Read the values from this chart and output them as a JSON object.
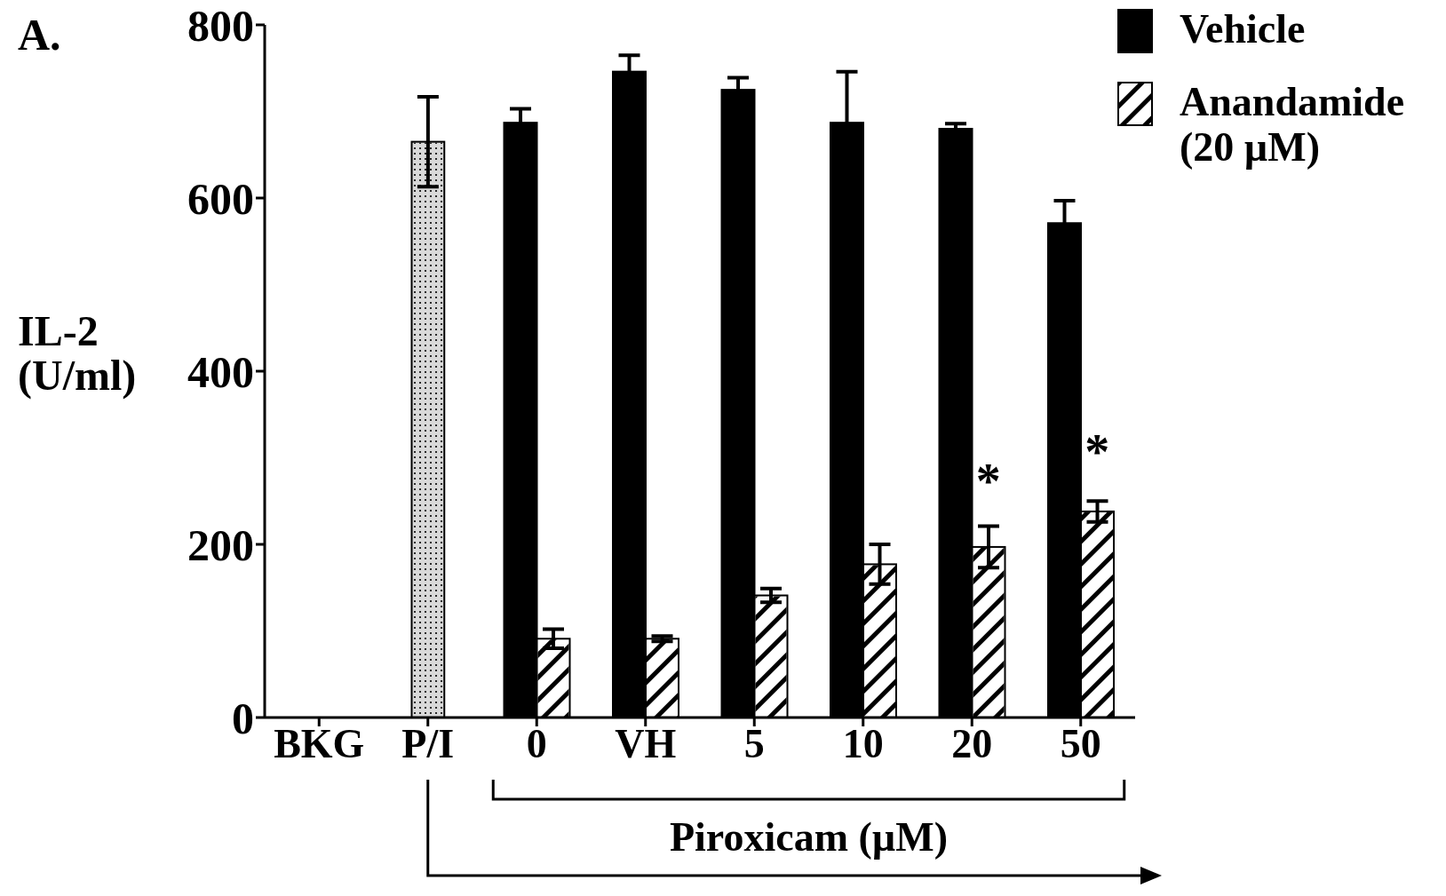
{
  "chart_data": {
    "type": "bar",
    "annotations": [
      "A.",
      {
        "text": "*",
        "x": "20",
        "y": 282
      },
      {
        "text": "*",
        "x": "50",
        "y": 316
      }
    ],
    "xlabel": "Piroxicam (µM)",
    "ylabel": "IL-2 (U/ml)",
    "categories": [
      "BKG",
      "P/I",
      "0",
      "VH",
      "5",
      "10",
      "20",
      "50"
    ],
    "series": [
      {
        "color": "#d9d9d9",
        "values": [
          null,
          665,
          null,
          null,
          null,
          null,
          null,
          null
        ],
        "errors": [
          null,
          52,
          null,
          null,
          null,
          null,
          null,
          null
        ]
      },
      {
        "name": "Vehicle",
        "color": "#000000",
        "values": [
          null,
          null,
          687,
          746,
          725,
          687,
          680,
          571
        ],
        "errors": [
          null,
          null,
          16,
          19,
          14,
          59,
          6,
          26
        ]
      },
      {
        "name": "Anandamide (20 µM)",
        "color": "#ffffff",
        "values": [
          null,
          null,
          91,
          91,
          141,
          177,
          197,
          238
        ],
        "errors": [
          null,
          null,
          11,
          3,
          8,
          23,
          24,
          12
        ]
      }
    ],
    "ylim": [
      0,
      800
    ],
    "yticks": [
      0,
      200,
      400,
      600,
      800
    ],
    "legend": "top right"
  }
}
